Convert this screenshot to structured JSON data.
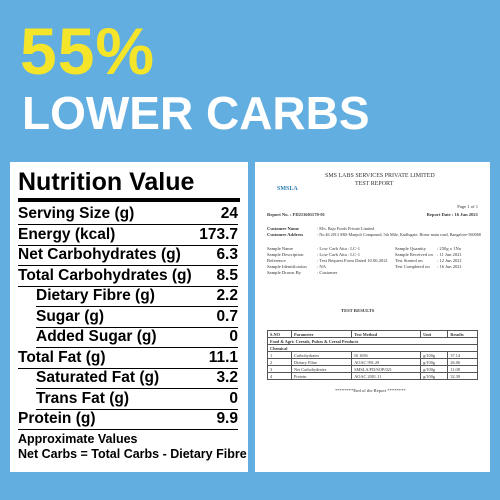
{
  "headline": {
    "percent": "55%",
    "text": "LOWER CARBS"
  },
  "nutrition": {
    "title": "Nutrition Value",
    "rows": [
      {
        "label": "Serving Size (g)",
        "value": "24",
        "indent": false
      },
      {
        "label": "Energy (kcal)",
        "value": "173.7",
        "indent": false
      },
      {
        "label": "Net Carbohydrates (g)",
        "value": "6.3",
        "indent": false
      },
      {
        "label": "Total Carbohydrates (g)",
        "value": "8.5",
        "indent": false
      },
      {
        "label": "Dietary Fibre (g)",
        "value": "2.2",
        "indent": true
      },
      {
        "label": "Sugar (g)",
        "value": "0.7",
        "indent": true
      },
      {
        "label": "Added Sugar (g)",
        "value": "0",
        "indent": true
      },
      {
        "label": "Total Fat (g)",
        "value": "11.1",
        "indent": false
      },
      {
        "label": "Saturated Fat (g)",
        "value": "3.2",
        "indent": true
      },
      {
        "label": "Trans Fat (g)",
        "value": "0",
        "indent": true
      },
      {
        "label": "Protein (g)",
        "value": "9.9",
        "indent": false
      }
    ],
    "notes": [
      "Approximate Values",
      "Net Carbs = Total Carbs - Dietary Fibre"
    ]
  },
  "report": {
    "logo": "SMSLA",
    "company": "SMS LABS SERVICES PRIVATE LIMITED",
    "doc_title": "TEST REPORT",
    "page": "Page 1 of 1",
    "report_no": "Report No. : FD211601170-01",
    "report_date": "Report Date : 16 Jun 2021",
    "info": [
      [
        "Customer Name",
        ": M/s. Bajo Foods Private Limited"
      ],
      [
        "Customer Address",
        ": No.46 2013 SRS Manjuli Compound, 5th Mile, Kudlugate, Hosur main road, Bangalore-560068"
      ]
    ],
    "info2": [
      [
        "Sample Name",
        ": Low Carb Atta : LC-1",
        "Sample Quantity",
        ": 250g x 1No"
      ],
      [
        "Sample Description",
        ": Low Carb Atta : LC-1",
        "Sample Received on",
        ": 11 Jun 2021"
      ],
      [
        "Reference",
        ": Test Request Form Dated 10.06.2021",
        "Test Started on",
        ": 12 Jun 2021"
      ],
      [
        "Sample Identification",
        ": NA",
        "Test Completed on",
        ": 16 Jun 2021"
      ],
      [
        "Sample Drawn By",
        ": Customer",
        "",
        ""
      ]
    ],
    "results_title": "TEST RESULTS",
    "table": {
      "header": [
        "S.NO",
        "Parameter",
        "Test Method",
        "Unit",
        "Results"
      ],
      "group": "Food & Agri: Cereals, Pulses & Cereal Products",
      "subgroup": "Chemical",
      "rows": [
        [
          "1",
          "Carbohydrates",
          "IS 1656",
          "g/100g",
          "37.14"
        ],
        [
          "2",
          "Dietary Fibre",
          "AOAC 991.29",
          "g/100g",
          "26.06"
        ],
        [
          "3",
          "Net Carbohydrates",
          "SMSLA/FD/SOP/021",
          "g/100g",
          "11.08"
        ],
        [
          "4",
          "Protein",
          "AOAC 2001.11",
          "g/100g",
          "32.39"
        ]
      ]
    },
    "end": "********End of the Report ********"
  }
}
